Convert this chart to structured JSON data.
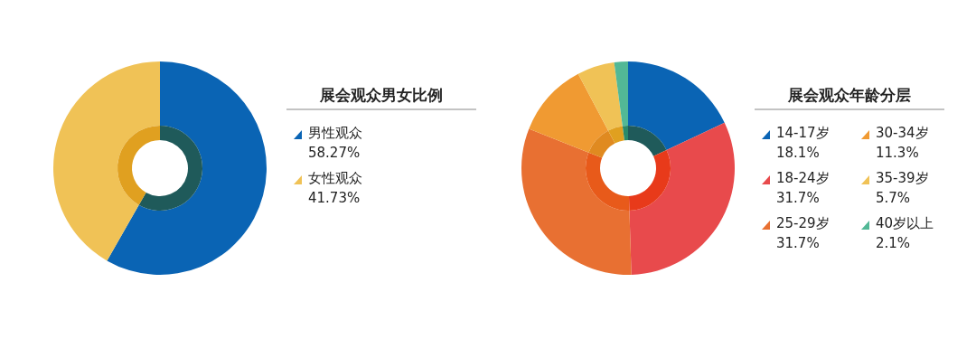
{
  "chart_data": [
    {
      "type": "donut",
      "title": "展会观众男女比例",
      "categories": [
        "男性观众",
        "女性观众"
      ],
      "series": [
        {
          "values": [
            58.27,
            41.73
          ],
          "colors": [
            "#0a64b4",
            "#f0c256"
          ],
          "value_labels": [
            "58.27%",
            "41.73%"
          ]
        },
        {
          "values": [
            58.27,
            41.73
          ],
          "colors": [
            "#1f5a5a",
            "#e0a020"
          ]
        }
      ],
      "legend": "right"
    },
    {
      "type": "donut",
      "title": "展会观众年龄分层",
      "categories": [
        "14-17岁",
        "18-24岁",
        "25-29岁",
        "30-34岁",
        "35-39岁",
        "40岁以上"
      ],
      "series": [
        {
          "values": [
            18.1,
            31.7,
            31.7,
            11.3,
            5.7,
            2.1
          ],
          "colors": [
            "#0a64b4",
            "#e84a4c",
            "#e87032",
            "#f09a32",
            "#f0c256",
            "#52b896"
          ],
          "value_labels": [
            "18.1%",
            "31.7%",
            "31.7%",
            "11.3%",
            "5.7%",
            "2.1%"
          ]
        },
        {
          "values": [
            18.1,
            31.7,
            31.7,
            11.3,
            5.7,
            2.1
          ],
          "colors": [
            "#1f5a5a",
            "#e83a1a",
            "#e85a1a",
            "#e08a20",
            "#e0a020",
            "#2a8a6a"
          ]
        }
      ],
      "legend": "right"
    }
  ]
}
